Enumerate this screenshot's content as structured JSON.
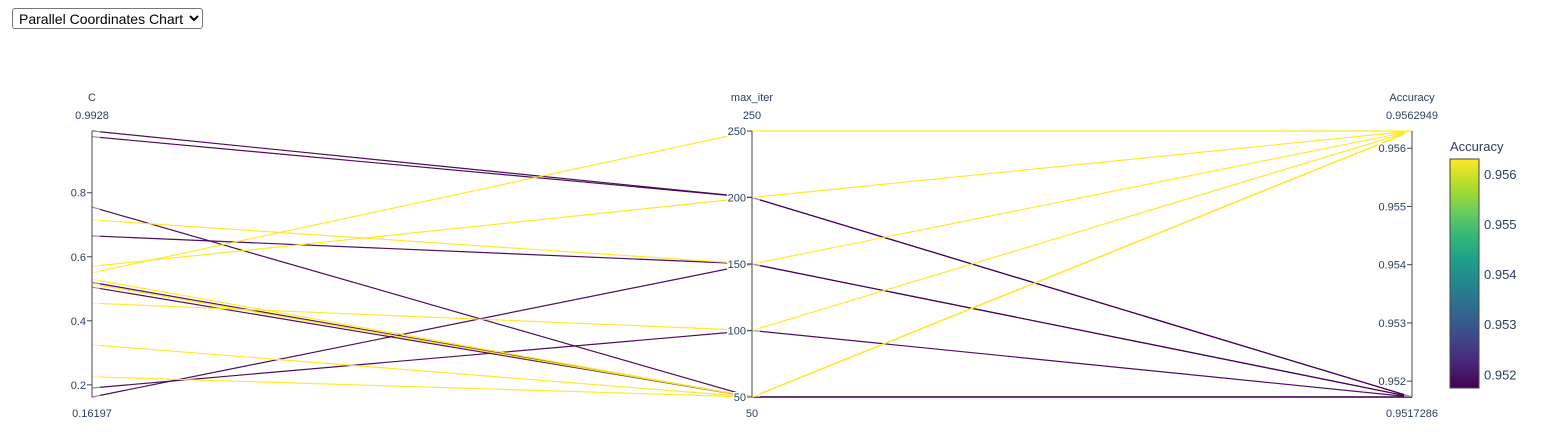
{
  "controls": {
    "chart_type_selected": "Parallel Coordinates Chart"
  },
  "chart_data": {
    "type": "parallel_coordinates",
    "dimensions": [
      {
        "label": "C",
        "range": [
          0.16197,
          0.9928
        ],
        "range_labels": {
          "max": "0.9928",
          "min": "0.16197"
        },
        "ticks": [
          0.2,
          0.4,
          0.6,
          0.8
        ],
        "tick_labels": [
          "0.2",
          "0.4",
          "0.6",
          "0.8"
        ]
      },
      {
        "label": "max_iter",
        "range": [
          50,
          250
        ],
        "range_labels": {
          "max": "250",
          "min": "50"
        },
        "ticks": [
          50,
          100,
          150,
          200,
          250
        ],
        "tick_labels": [
          "50",
          "100",
          "150",
          "200",
          "250"
        ]
      },
      {
        "label": "Accuracy",
        "range": [
          0.9517286,
          0.9562949
        ],
        "range_labels": {
          "max": "0.9562949",
          "min": "0.9517286"
        },
        "ticks": [
          0.952,
          0.953,
          0.954,
          0.955,
          0.956
        ],
        "tick_labels": [
          "0.952",
          "0.953",
          "0.954",
          "0.955",
          "0.956"
        ]
      }
    ],
    "lines": [
      {
        "C": 0.9928,
        "max_iter": 200,
        "Accuracy": 0.9517286
      },
      {
        "C": 0.975,
        "max_iter": 200,
        "Accuracy": 0.9517286
      },
      {
        "C": 0.755,
        "max_iter": 50,
        "Accuracy": 0.9517286
      },
      {
        "C": 0.665,
        "max_iter": 150,
        "Accuracy": 0.9517286
      },
      {
        "C": 0.52,
        "max_iter": 50,
        "Accuracy": 0.9517286
      },
      {
        "C": 0.505,
        "max_iter": 50,
        "Accuracy": 0.9517286
      },
      {
        "C": 0.19,
        "max_iter": 100,
        "Accuracy": 0.9517286
      },
      {
        "C": 0.16197,
        "max_iter": 150,
        "Accuracy": 0.9517286
      },
      {
        "C": 0.715,
        "max_iter": 150,
        "Accuracy": 0.9562949
      },
      {
        "C": 0.57,
        "max_iter": 200,
        "Accuracy": 0.9562949
      },
      {
        "C": 0.55,
        "max_iter": 250,
        "Accuracy": 0.9562949
      },
      {
        "C": 0.53,
        "max_iter": 50,
        "Accuracy": 0.9562949
      },
      {
        "C": 0.515,
        "max_iter": 50,
        "Accuracy": 0.9562949
      },
      {
        "C": 0.455,
        "max_iter": 100,
        "Accuracy": 0.9562949
      },
      {
        "C": 0.325,
        "max_iter": 50,
        "Accuracy": 0.9562949
      },
      {
        "C": 0.225,
        "max_iter": 50,
        "Accuracy": 0.9562949
      }
    ],
    "colorbar": {
      "title": "Accuracy",
      "range": [
        0.9517286,
        0.9562949
      ],
      "ticks": [
        0.952,
        0.953,
        0.954,
        0.955,
        0.956
      ],
      "tick_labels": [
        "0.952",
        "0.953",
        "0.954",
        "0.955",
        "0.956"
      ],
      "colorscale": [
        "#440154",
        "#482878",
        "#3e4989",
        "#31688e",
        "#26828e",
        "#1f9e89",
        "#35b779",
        "#6ece58",
        "#b5de2b",
        "#fde725"
      ]
    }
  }
}
